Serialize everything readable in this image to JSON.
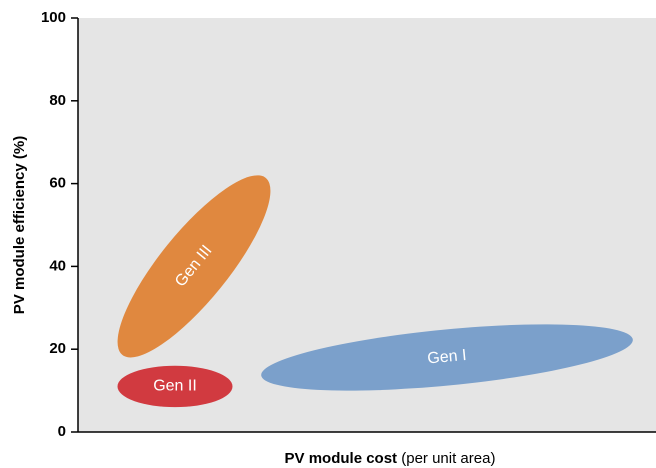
{
  "chart_data": {
    "type": "region",
    "y_label": "PV module efficiency (%)",
    "x_label": "PV module cost",
    "x_label_note": "(per unit area)",
    "ylim": [
      0,
      100
    ],
    "yticks": [
      0,
      20,
      40,
      60,
      80,
      100
    ],
    "regions": [
      {
        "name": "Gen I",
        "color": "#7ba0cb",
        "efficiency": [
          10,
          26
        ]
      },
      {
        "name": "Gen II",
        "color": "#d13a40",
        "efficiency": [
          6,
          16
        ]
      },
      {
        "name": "Gen III",
        "color": "#e0883f",
        "efficiency": [
          18,
          62
        ]
      }
    ]
  }
}
